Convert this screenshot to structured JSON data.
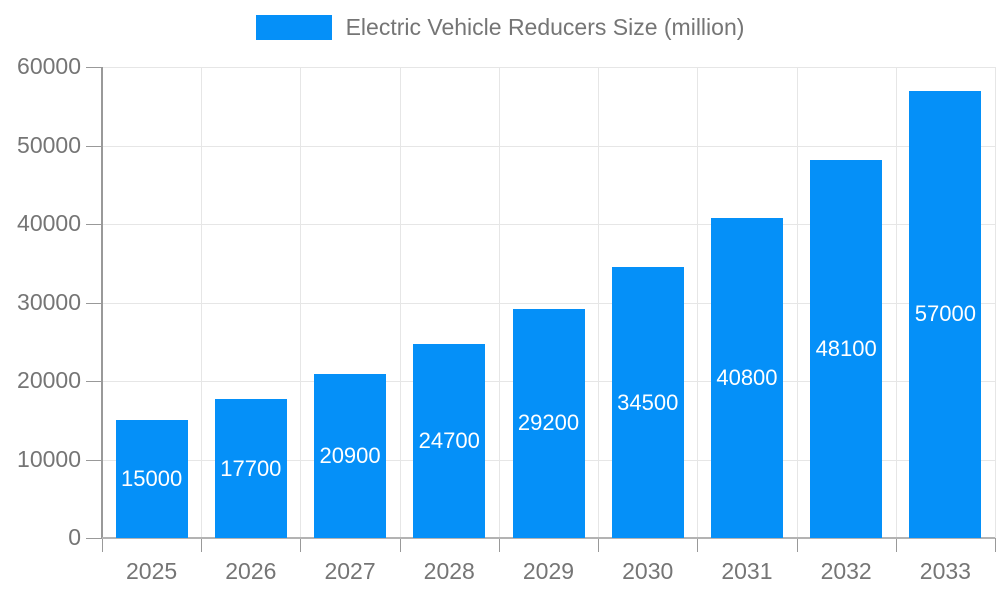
{
  "legend": {
    "label": "Electric Vehicle Reducers Size (million)"
  },
  "colors": {
    "bar": "#0590f8",
    "grid": "#e6e6e6",
    "axis": "#999999",
    "tick_text": "#757575",
    "bar_label_text": "#ffffff"
  },
  "chart_data": {
    "type": "bar",
    "title": "Electric Vehicle Reducers Size (million)",
    "categories": [
      "2025",
      "2026",
      "2027",
      "2028",
      "2029",
      "2030",
      "2031",
      "2032",
      "2033"
    ],
    "series": [
      {
        "name": "Electric Vehicle Reducers Size (million)",
        "values": [
          15000,
          17700,
          20900,
          24700,
          29200,
          34500,
          40800,
          48100,
          57000
        ]
      }
    ],
    "xlabel": "",
    "ylabel": "",
    "ylim": [
      0,
      60000
    ],
    "ytick_step": 10000,
    "ytick_labels": [
      "0",
      "10000",
      "20000",
      "30000",
      "40000",
      "50000",
      "60000"
    ],
    "grid": true,
    "legend_position": "top",
    "bar_value_labels": true
  }
}
